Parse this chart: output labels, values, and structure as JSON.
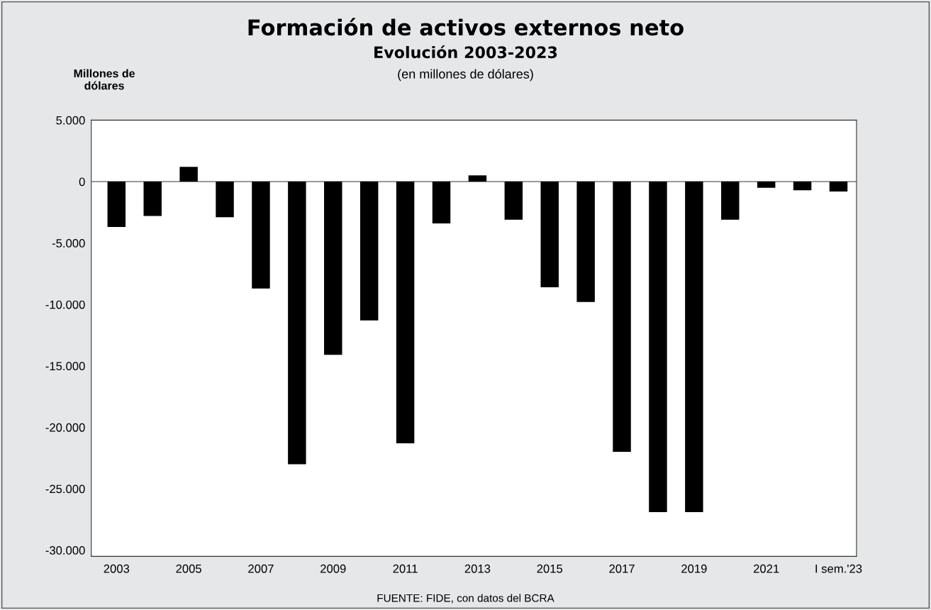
{
  "chart_data": {
    "type": "bar",
    "title": "Formación de activos externos neto",
    "subtitle": "Evolución 2003-2023",
    "ylabel": "Millones de\ndólares",
    "annotations": [
      "(en millones de dólares)",
      "FUENTE: FIDE, con datos del BCRA"
    ],
    "categories": [
      "2003",
      null,
      "2005",
      null,
      "2007",
      null,
      "2009",
      null,
      "2011",
      null,
      "2013",
      null,
      "2015",
      null,
      "2017",
      null,
      "2019",
      null,
      "2021",
      null,
      "I sem.'23"
    ],
    "values": [
      -3700,
      -2800,
      1200,
      -2900,
      -8700,
      -23000,
      -14100,
      -11300,
      -21300,
      -3400,
      500,
      -3100,
      -8600,
      -9800,
      -22000,
      -26900,
      -26900,
      -3100,
      -500,
      -700,
      -800
    ],
    "color": "#000000",
    "ylim": [
      -30500,
      5000
    ],
    "yticks": [
      {
        "value": 5000,
        "label": "5.000"
      },
      0,
      {
        "value": -5000,
        "label": "-5.000"
      },
      {
        "value": -10000,
        "label": "-10.000"
      },
      {
        "value": -15000,
        "label": "-15.000"
      },
      {
        "value": -20000,
        "label": "-20.000"
      },
      {
        "value": -25000,
        "label": "-25.000"
      },
      {
        "value": -30000,
        "label": "-30.000"
      }
    ],
    "ref_lines": [
      {
        "axis": "y",
        "value": 0,
        "color": "#777777"
      }
    ],
    "grid": false,
    "legend": false
  }
}
